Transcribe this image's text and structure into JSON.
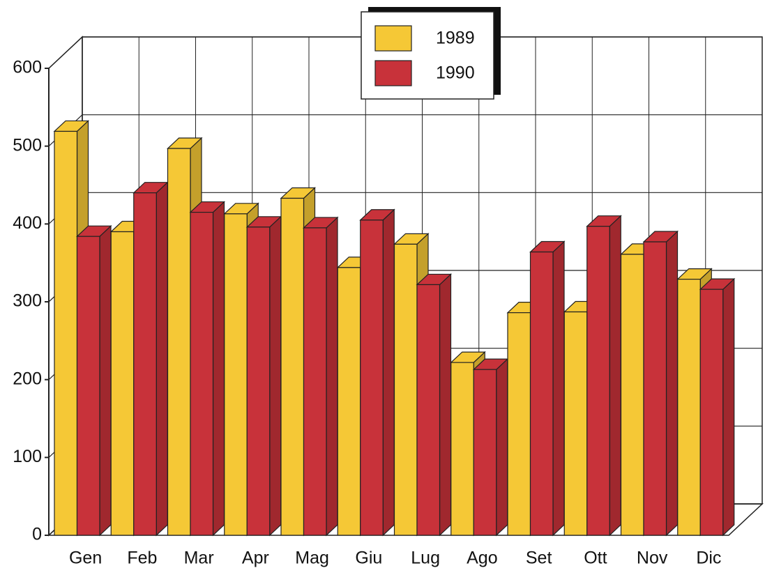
{
  "chart_data": {
    "type": "bar3d",
    "categories": [
      "Gen",
      "Feb",
      "Mar",
      "Apr",
      "Mag",
      "Giu",
      "Lug",
      "Ago",
      "Set",
      "Ott",
      "Nov",
      "Dic"
    ],
    "series": [
      {
        "name": "1989",
        "color": "#f5c836",
        "values": [
          519,
          390,
          497,
          413,
          433,
          344,
          374,
          222,
          286,
          287,
          361,
          329
        ]
      },
      {
        "name": "1990",
        "color": "#c8323a",
        "values": [
          384,
          440,
          415,
          396,
          395,
          405,
          322,
          213,
          364,
          397,
          377,
          316
        ]
      }
    ],
    "ylim": [
      0,
      600
    ],
    "yticks": [
      0,
      100,
      200,
      300,
      400,
      500,
      600
    ],
    "grid": true,
    "legend": "top"
  }
}
